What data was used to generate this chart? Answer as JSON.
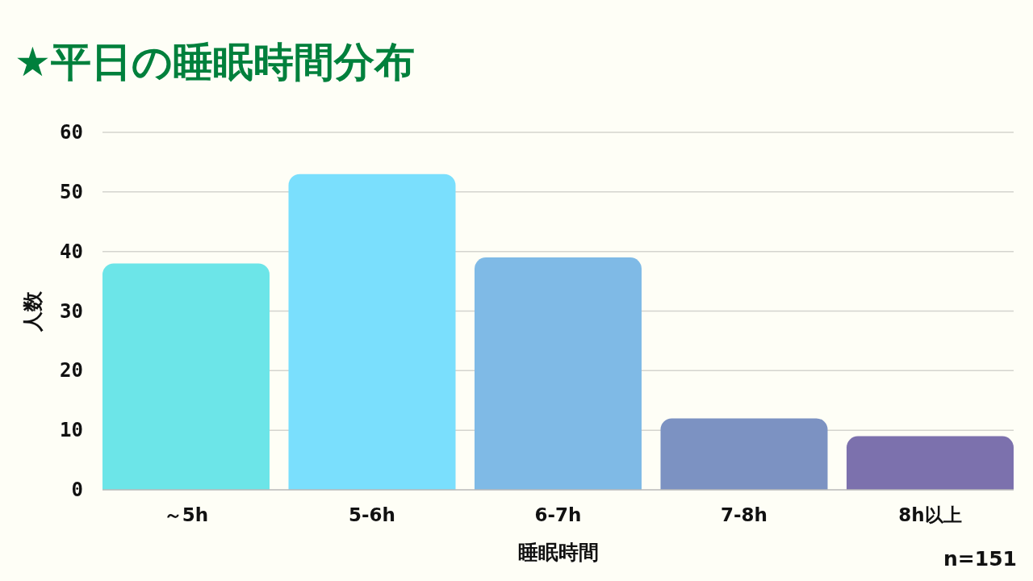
{
  "chart_data": {
    "type": "bar",
    "title": "★平日の睡眠時間分布",
    "categories": [
      "～5h",
      "5-6h",
      "6-7h",
      "7-8h",
      "8h以上"
    ],
    "values": [
      38,
      53,
      39,
      12,
      9
    ],
    "colors": [
      "#6ce5e8",
      "#7adffd",
      "#7fbae6",
      "#7c92c2",
      "#7c71ad"
    ],
    "ylim": [
      0,
      60
    ],
    "yticks": [
      0,
      10,
      20,
      30,
      40,
      50,
      60
    ],
    "grid": "y",
    "xlabel": "睡眠時間",
    "ylabel": "人数",
    "annotations": [
      "n=151"
    ]
  }
}
